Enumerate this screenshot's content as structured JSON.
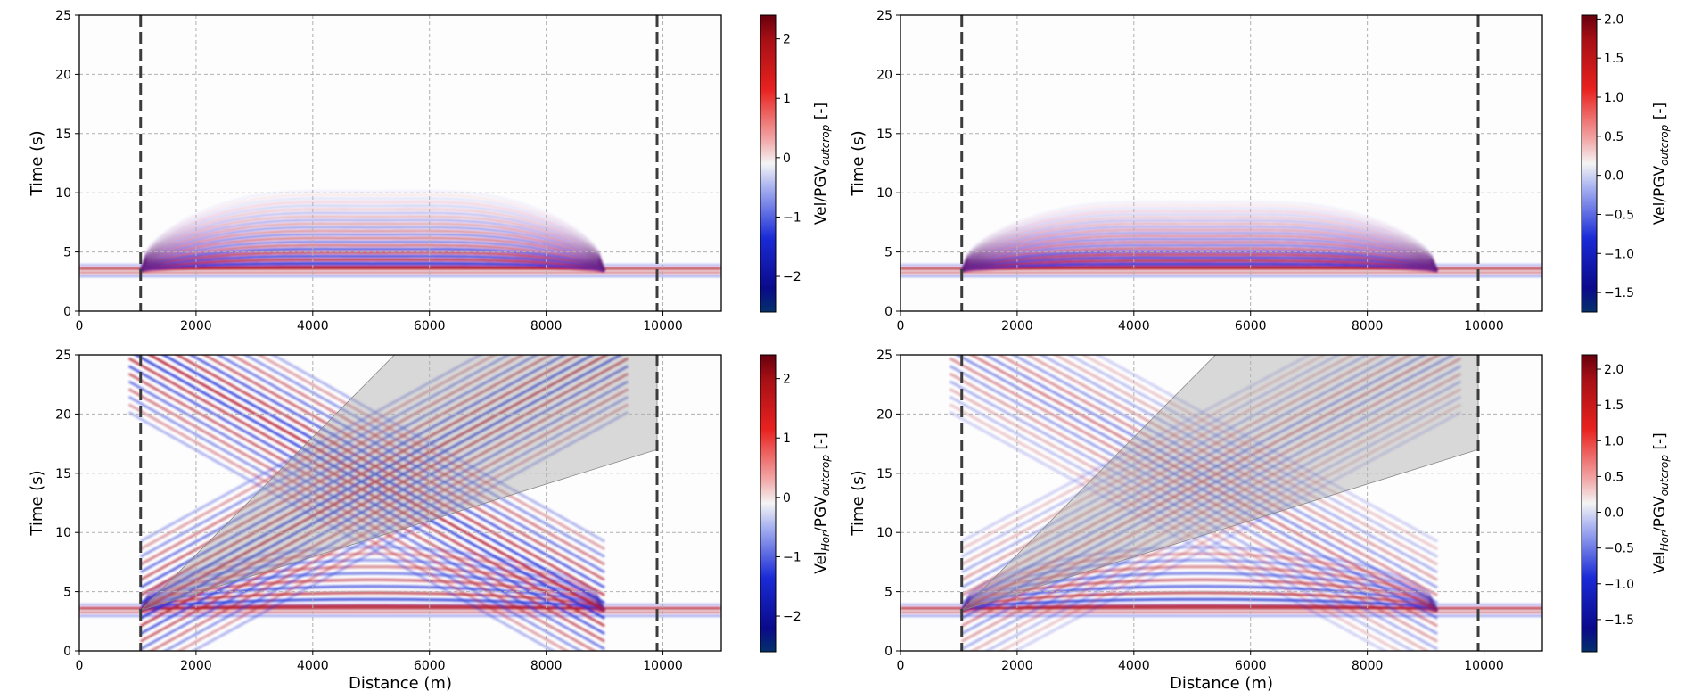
{
  "colors": {
    "positive": "#b2182b",
    "negative": "#1a2bd6",
    "boundary_line": "#3c3c3c",
    "shaded_region": "#9a9a9a"
  },
  "chart_data": [
    {
      "id": "top-left",
      "type": "heatmap",
      "component": "vertical",
      "xlabel": "",
      "ylabel": "Time (s)",
      "xlim": [
        0,
        11000
      ],
      "ylim": [
        0,
        25
      ],
      "xticks": [
        "0",
        "2000",
        "4000",
        "6000",
        "8000",
        "10000"
      ],
      "yticks": [
        "0",
        "5",
        "10",
        "15",
        "20",
        "25"
      ],
      "grid": true,
      "boundary_lines_x": [
        1050,
        9900
      ],
      "input_wave_time": 3.4,
      "basin_edges_x": [
        1050,
        9000
      ],
      "reverberation_extent_s": 10.5,
      "shaded_region": null,
      "colorbar": {
        "label_prefix": "Vel/PGV",
        "label_sub": "outcrop",
        "label_suffix": " [-]",
        "range": [
          -2.6,
          2.4
        ],
        "ticks": [
          "−2",
          "−1",
          "0",
          "1",
          "2"
        ]
      }
    },
    {
      "id": "top-right",
      "type": "heatmap",
      "component": "vertical",
      "xlabel": "",
      "ylabel": "Time (s)",
      "xlim": [
        0,
        11000
      ],
      "ylim": [
        0,
        25
      ],
      "xticks": [
        "0",
        "2000",
        "4000",
        "6000",
        "8000",
        "10000"
      ],
      "yticks": [
        "0",
        "5",
        "10",
        "15",
        "20",
        "25"
      ],
      "grid": true,
      "boundary_lines_x": [
        1050,
        9900
      ],
      "input_wave_time": 3.4,
      "basin_edges_x": [
        1050,
        9200
      ],
      "reverberation_extent_s": 9.5,
      "shaded_region": null,
      "colorbar": {
        "label_prefix": "Vel/PGV",
        "label_sub": "outcrop",
        "label_suffix": " [-]",
        "range": [
          -1.75,
          2.05
        ],
        "ticks": [
          "2.0",
          "1.5",
          "1.0",
          "0.5",
          "0.0",
          "−0.5",
          "−1.0",
          "−1.5"
        ]
      }
    },
    {
      "id": "bottom-left",
      "type": "heatmap",
      "component": "horizontal",
      "xlabel": "Distance (m)",
      "ylabel": "Time (s)",
      "xlim": [
        0,
        11000
      ],
      "ylim": [
        0,
        25
      ],
      "xticks": [
        "0",
        "2000",
        "4000",
        "6000",
        "8000",
        "10000"
      ],
      "yticks": [
        "0",
        "5",
        "10",
        "15",
        "20",
        "25"
      ],
      "grid": true,
      "boundary_lines_x": [
        1050,
        9900
      ],
      "input_wave_time": 3.4,
      "basin_edges_x": [
        1050,
        9000
      ],
      "crossing_point": [
        5000,
        11.5
      ],
      "shaded_region": {
        "polygon": [
          [
            1050,
            3.4
          ],
          [
            5400,
            25
          ],
          [
            9900,
            25
          ],
          [
            9900,
            17
          ],
          [
            1050,
            3.4
          ]
        ]
      },
      "colorbar": {
        "label_prefix": "Vel",
        "label_mid_sub": "Hor",
        "label_mid": "/PGV",
        "label_sub": "outcrop",
        "label_suffix": " [-]",
        "range": [
          -2.6,
          2.4
        ],
        "ticks": [
          "−2",
          "−1",
          "0",
          "1",
          "2"
        ]
      }
    },
    {
      "id": "bottom-right",
      "type": "heatmap",
      "component": "horizontal",
      "xlabel": "Distance (m)",
      "ylabel": "Time (s)",
      "xlim": [
        0,
        11000
      ],
      "ylim": [
        0,
        25
      ],
      "xticks": [
        "0",
        "2000",
        "4000",
        "6000",
        "8000",
        "10000"
      ],
      "yticks": [
        "0",
        "5",
        "10",
        "15",
        "20",
        "25"
      ],
      "grid": true,
      "boundary_lines_x": [
        1050,
        9900
      ],
      "input_wave_time": 3.4,
      "basin_edges_x": [
        1050,
        9200
      ],
      "crossing_point": [
        5200,
        11.5
      ],
      "shaded_region": {
        "polygon": [
          [
            1050,
            3.4
          ],
          [
            5400,
            25
          ],
          [
            9900,
            25
          ],
          [
            9900,
            17
          ],
          [
            1050,
            3.4
          ]
        ]
      },
      "colorbar": {
        "label_prefix": "Vel",
        "label_mid_sub": "Hor",
        "label_mid": "/PGV",
        "label_sub": "outcrop",
        "label_suffix": " [-]",
        "range": [
          -1.95,
          2.2
        ],
        "ticks": [
          "2.0",
          "1.5",
          "1.0",
          "0.5",
          "0.0",
          "−0.5",
          "−1.0",
          "−1.5"
        ]
      }
    }
  ]
}
